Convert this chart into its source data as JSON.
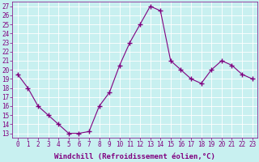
{
  "x": [
    0,
    1,
    2,
    3,
    4,
    5,
    6,
    7,
    8,
    9,
    10,
    11,
    12,
    13,
    14,
    15,
    16,
    17,
    18,
    19,
    20,
    21,
    22,
    23
  ],
  "y": [
    19.5,
    18.0,
    16.0,
    15.0,
    14.0,
    13.0,
    13.0,
    13.2,
    16.0,
    17.5,
    20.5,
    23.0,
    25.0,
    27.0,
    26.5,
    21.0,
    20.0,
    19.0,
    18.5,
    20.0,
    21.0,
    20.5,
    19.5,
    19.0
  ],
  "line_color": "#800080",
  "marker": "+",
  "marker_size": 4,
  "bg_color": "#c8f0f0",
  "grid_color": "#ffffff",
  "xlabel": "Windchill (Refroidissement éolien,°C)",
  "ylabel_ticks": [
    13,
    14,
    15,
    16,
    17,
    18,
    19,
    20,
    21,
    22,
    23,
    24,
    25,
    26,
    27
  ],
  "ylim": [
    12.5,
    27.5
  ],
  "xlim": [
    -0.5,
    23.5
  ],
  "axis_label_fontsize": 6.5,
  "tick_fontsize": 5.5
}
